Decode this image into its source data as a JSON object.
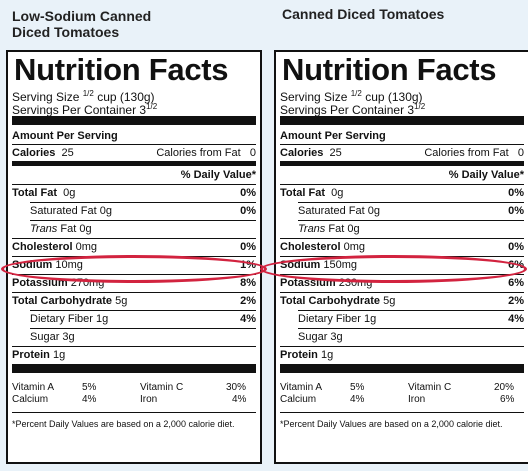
{
  "panels": [
    {
      "title_line1": "Low-Sodium Canned",
      "title_line2": "Diced Tomatoes",
      "heading": "Nutrition Facts",
      "serving_size_text": "Serving Size",
      "serving_size_frac": "1/2",
      "serving_size_value": "cup (130g)",
      "servings_text": "Servings Per Container 3",
      "servings_frac": "1/2",
      "amount_per_serving": "Amount Per Serving",
      "calories_label": "Calories",
      "calories_value": "25",
      "calories_fat_label": "Calories from Fat",
      "calories_fat_value": "0",
      "daily_value_header": "% Daily Value*",
      "nutrients": [
        {
          "label": "Total Fat",
          "amount": "0g",
          "dv": "0%"
        },
        {
          "label": "Saturated Fat",
          "amount": "0g",
          "dv": "0%"
        },
        {
          "label": "Trans",
          "amount": "Fat 0g",
          "dv": ""
        },
        {
          "label": "Cholesterol",
          "amount": "0mg",
          "dv": "0%"
        },
        {
          "label": "Sodium",
          "amount": "10mg",
          "dv": "1%"
        },
        {
          "label": "Potassium",
          "amount": "270mg",
          "dv": "8%"
        },
        {
          "label": "Total Carbohydrate",
          "amount": "5g",
          "dv": "2%"
        },
        {
          "label": "Dietary Fiber",
          "amount": "1g",
          "dv": "4%"
        },
        {
          "label": "Sugar",
          "amount": "3g",
          "dv": ""
        },
        {
          "label": "Protein",
          "amount": "1g",
          "dv": ""
        }
      ],
      "vitamins": {
        "a_label": "Vitamin A",
        "a_value": "5%",
        "c_label": "Vitamin C",
        "c_value": "30%",
        "ca_label": "Calcium",
        "ca_value": "4%",
        "fe_label": "Iron",
        "fe_value": "4%"
      },
      "footnote": "*Percent Daily Values are based on a 2,000 calorie diet."
    },
    {
      "title_line1": "Canned Diced Tomatoes",
      "title_line2": "",
      "heading": "Nutrition Facts",
      "serving_size_text": "Serving Size",
      "serving_size_frac": "1/2",
      "serving_size_value": "cup (130g)",
      "servings_text": "Servings Per Container 3",
      "servings_frac": "1/2",
      "amount_per_serving": "Amount Per Serving",
      "calories_label": "Calories",
      "calories_value": "25",
      "calories_fat_label": "Calories from Fat",
      "calories_fat_value": "0",
      "daily_value_header": "% Daily Value*",
      "nutrients": [
        {
          "label": "Total Fat",
          "amount": "0g",
          "dv": "0%"
        },
        {
          "label": "Saturated Fat",
          "amount": "0g",
          "dv": "0%"
        },
        {
          "label": "Trans",
          "amount": "Fat 0g",
          "dv": ""
        },
        {
          "label": "Cholesterol",
          "amount": "0mg",
          "dv": "0%"
        },
        {
          "label": "Sodium",
          "amount": "150mg",
          "dv": "6%"
        },
        {
          "label": "Potassium",
          "amount": "230mg",
          "dv": "6%"
        },
        {
          "label": "Total Carbohydrate",
          "amount": "5g",
          "dv": "2%"
        },
        {
          "label": "Dietary Fiber",
          "amount": "1g",
          "dv": "4%"
        },
        {
          "label": "Sugar",
          "amount": "3g",
          "dv": ""
        },
        {
          "label": "Protein",
          "amount": "1g",
          "dv": ""
        }
      ],
      "vitamins": {
        "a_label": "Vitamin A",
        "a_value": "5%",
        "c_label": "Vitamin C",
        "c_value": "20%",
        "ca_label": "Calcium",
        "ca_value": "4%",
        "fe_label": "Iron",
        "fe_value": "6%"
      },
      "footnote": "*Percent Daily Values are based on a 2,000 calorie diet."
    }
  ],
  "colors": {
    "highlight": "#d2233f",
    "background": "#e9f2f9"
  }
}
